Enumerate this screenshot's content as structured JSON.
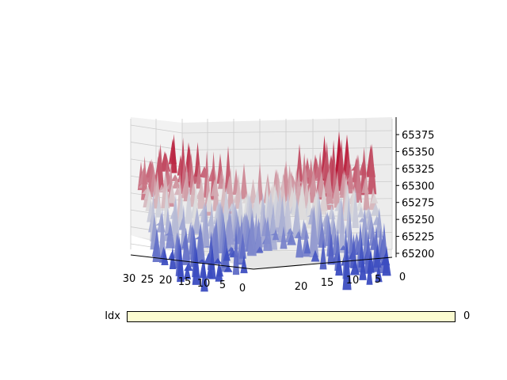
{
  "chart_data": {
    "type": "surface",
    "title": "",
    "colormap": "coolwarm",
    "grid": true,
    "axes": {
      "x": {
        "ticks": [
          "30",
          "25",
          "20",
          "15",
          "10",
          "5",
          "0"
        ],
        "range": [
          0,
          30
        ]
      },
      "y": {
        "ticks": [
          "20",
          "15",
          "10",
          "5",
          "0"
        ],
        "range": [
          0,
          23
        ]
      },
      "z": {
        "ticks": [
          "65200",
          "65225",
          "65250",
          "65275",
          "65300",
          "65325",
          "65350",
          "65375"
        ],
        "range": [
          65195,
          65385
        ]
      }
    },
    "surface_summary": {
      "z_min": 65200,
      "z_max": 65375,
      "pattern": "oscillating ridges and valleys along both axes"
    }
  },
  "slider": {
    "label": "Idx",
    "value": "0",
    "fraction": 0.0,
    "color": "#fbfbd0"
  }
}
